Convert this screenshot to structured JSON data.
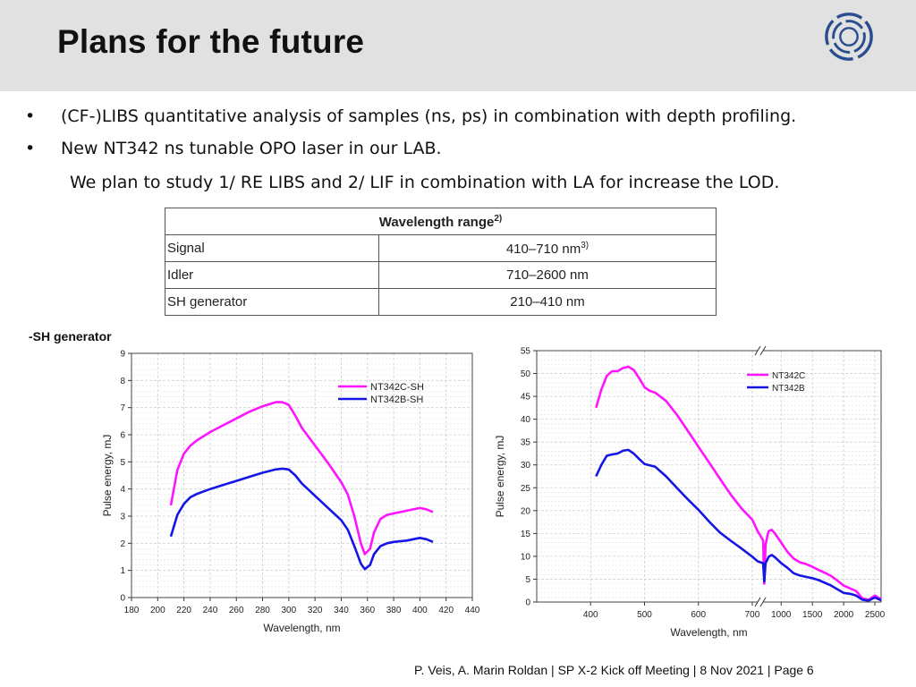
{
  "slide": {
    "title": "Plans for the future",
    "bullets": [
      "(CF-)LIBS quantitative analysis of samples (ns, ps) in combination with depth profiling.",
      "New NT342 ns tunable OPO laser in our LAB."
    ],
    "sub_text": "We plan to study 1/ RE LIBS and 2/ LIF in combination with LA for increase the LOD.",
    "bullet_symbol": "•",
    "footer": "P. Veis, A. Marin Roldan | SP X-2 Kick off Meeting | 8 Nov 2021 | Page 6",
    "sh_label": "-SH generator",
    "colors": {
      "header_bg": "#e1e1e1",
      "magenta": "#ff14ff",
      "blue": "#1515e6",
      "logo": "#2a4d8f"
    }
  },
  "table": {
    "header": "Wavelength range",
    "header_sup": "2)",
    "rows": [
      {
        "label": "Signal",
        "value": "410–710 nm",
        "sup": "3)"
      },
      {
        "label": "Idler",
        "value": "710–2600 nm",
        "sup": ""
      },
      {
        "label": "SH generator",
        "value": "210–410 nm",
        "sup": ""
      }
    ]
  },
  "chart_data": [
    {
      "type": "line",
      "title": "",
      "xlabel": "Wavelength, nm",
      "ylabel": "Pulse energy, mJ",
      "xlim": [
        180,
        440
      ],
      "ylim": [
        0,
        9
      ],
      "xticks": [
        "180",
        "200",
        "220",
        "240",
        "260",
        "280",
        "300",
        "320",
        "340",
        "360",
        "380",
        "400",
        "420",
        "440"
      ],
      "yticks": [
        "0",
        "1",
        "2",
        "3",
        "4",
        "5",
        "6",
        "7",
        "8",
        "9"
      ],
      "grid": true,
      "legend": "top-right",
      "series": [
        {
          "name": "NT342C-SH",
          "color": "#ff14ff",
          "x": [
            210,
            215,
            220,
            225,
            230,
            240,
            250,
            260,
            270,
            280,
            290,
            295,
            300,
            305,
            310,
            320,
            330,
            340,
            345,
            350,
            355,
            358,
            362,
            365,
            370,
            375,
            380,
            390,
            400,
            405,
            410
          ],
          "y": [
            3.4,
            4.7,
            5.3,
            5.6,
            5.8,
            6.1,
            6.35,
            6.6,
            6.85,
            7.05,
            7.2,
            7.2,
            7.1,
            6.7,
            6.25,
            5.6,
            4.95,
            4.25,
            3.8,
            3.0,
            2.0,
            1.6,
            1.8,
            2.4,
            2.9,
            3.05,
            3.1,
            3.2,
            3.3,
            3.25,
            3.15
          ]
        },
        {
          "name": "NT342B-SH",
          "color": "#1515e6",
          "x": [
            210,
            215,
            220,
            225,
            230,
            240,
            250,
            260,
            270,
            280,
            290,
            295,
            300,
            305,
            310,
            320,
            330,
            340,
            345,
            350,
            355,
            358,
            362,
            365,
            370,
            375,
            380,
            390,
            400,
            405,
            410
          ],
          "y": [
            2.25,
            3.05,
            3.45,
            3.7,
            3.82,
            4.0,
            4.15,
            4.3,
            4.45,
            4.6,
            4.72,
            4.75,
            4.72,
            4.5,
            4.2,
            3.75,
            3.3,
            2.85,
            2.5,
            1.9,
            1.25,
            1.05,
            1.2,
            1.6,
            1.9,
            2.0,
            2.05,
            2.1,
            2.2,
            2.15,
            2.05
          ]
        }
      ]
    },
    {
      "type": "line",
      "title": "",
      "xlabel": "Wavelength, nm",
      "ylabel": "Pulse energy, mJ",
      "xlim": [
        300,
        2600
      ],
      "ylim": [
        0,
        55
      ],
      "xticks": [
        "400",
        "500",
        "600",
        "700",
        "1000",
        "1500",
        "2000",
        "2500"
      ],
      "yticks": [
        "0",
        "5",
        "10",
        "15",
        "20",
        "25",
        "30",
        "35",
        "40",
        "45",
        "50",
        "55"
      ],
      "grid": true,
      "broken_axis": true,
      "legend": "top-right",
      "series": [
        {
          "name": "NT342C",
          "color": "#ff14ff",
          "x": [
            410,
            420,
            430,
            440,
            450,
            460,
            470,
            480,
            490,
            500,
            510,
            520,
            540,
            560,
            580,
            600,
            620,
            640,
            660,
            680,
            700,
            710,
            712,
            730,
            750,
            780,
            800,
            850,
            900,
            1000,
            1100,
            1200,
            1300,
            1400,
            1500,
            1600,
            1700,
            1800,
            1900,
            2000,
            2100,
            2200,
            2300,
            2400,
            2500,
            2600
          ],
          "y": [
            42.5,
            46.5,
            49.5,
            50.5,
            50.5,
            51.2,
            51.5,
            50.8,
            49.0,
            47.0,
            46.2,
            45.8,
            44.0,
            41.0,
            37.5,
            34.0,
            30.5,
            27.0,
            23.5,
            20.5,
            18.0,
            15.5,
            13.5,
            4.0,
            12.5,
            14.5,
            15.5,
            15.8,
            15.0,
            13.0,
            11.0,
            9.5,
            8.7,
            8.3,
            7.7,
            7.0,
            6.4,
            5.7,
            4.7,
            3.6,
            3.0,
            2.4,
            0.8,
            0.5,
            1.4,
            0.6
          ]
        },
        {
          "name": "NT342B",
          "color": "#1515e6",
          "x": [
            410,
            420,
            430,
            440,
            450,
            460,
            470,
            480,
            490,
            500,
            510,
            520,
            540,
            560,
            580,
            600,
            620,
            640,
            660,
            680,
            700,
            710,
            712,
            730,
            750,
            780,
            800,
            850,
            900,
            1000,
            1100,
            1200,
            1300,
            1400,
            1500,
            1600,
            1700,
            1800,
            1900,
            2000,
            2100,
            2200,
            2300,
            2400,
            2500,
            2600
          ],
          "y": [
            27.5,
            30.0,
            32.0,
            32.3,
            32.5,
            33.1,
            33.3,
            32.5,
            31.3,
            30.2,
            29.9,
            29.6,
            27.5,
            25.0,
            22.5,
            20.2,
            17.6,
            15.2,
            13.4,
            11.7,
            9.9,
            8.9,
            8.5,
            4.5,
            8.5,
            9.3,
            9.9,
            10.3,
            9.8,
            8.5,
            7.5,
            6.3,
            5.8,
            5.5,
            5.2,
            4.8,
            4.2,
            3.6,
            2.8,
            2.0,
            1.8,
            1.4,
            0.5,
            0.3,
            1.0,
            0.4
          ]
        }
      ]
    }
  ]
}
